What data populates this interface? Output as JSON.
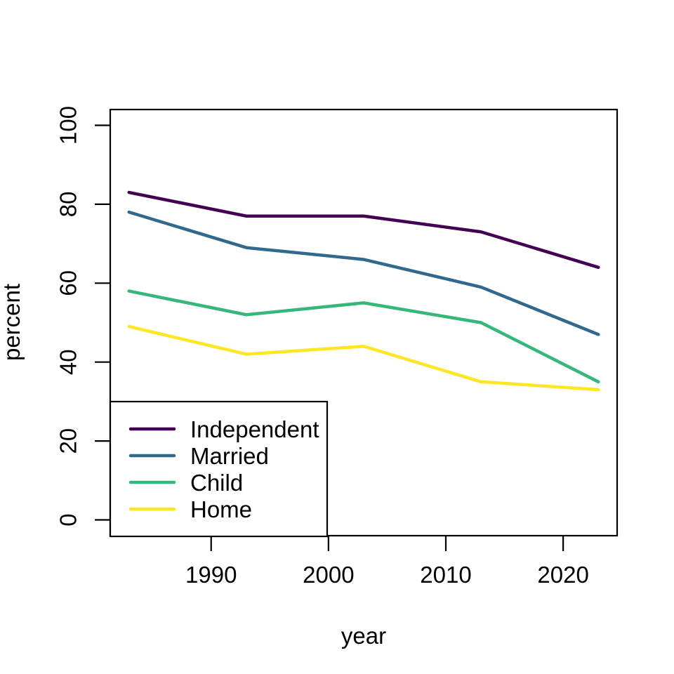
{
  "figure": {
    "background": "#ffffff",
    "axis_color": "#000000",
    "text_color": "#000000"
  },
  "chart_data": {
    "type": "line",
    "title": "",
    "xlabel": "year",
    "ylabel": "percent",
    "x": [
      1983,
      1993,
      2003,
      2013,
      2023
    ],
    "series": [
      {
        "name": "Independent",
        "color": "#440154",
        "values": [
          83,
          77,
          77,
          73,
          64
        ]
      },
      {
        "name": "Married",
        "color": "#31688E",
        "values": [
          78,
          69,
          66,
          59,
          47
        ]
      },
      {
        "name": "Child",
        "color": "#35B779",
        "values": [
          58,
          52,
          55,
          50,
          35
        ]
      },
      {
        "name": "Home",
        "color": "#FDE725",
        "values": [
          49,
          42,
          44,
          35,
          33
        ]
      }
    ],
    "x_ticks": [
      1990,
      2000,
      2010,
      2020
    ],
    "y_ticks": [
      0,
      20,
      40,
      60,
      80,
      100
    ],
    "xlim": [
      1983,
      2023
    ],
    "ylim": [
      0,
      100
    ],
    "axis_expansion": 0.04,
    "grid": false,
    "legend": {
      "position": "bottomleft",
      "entries": [
        "Independent",
        "Married",
        "Child",
        "Home"
      ]
    }
  }
}
